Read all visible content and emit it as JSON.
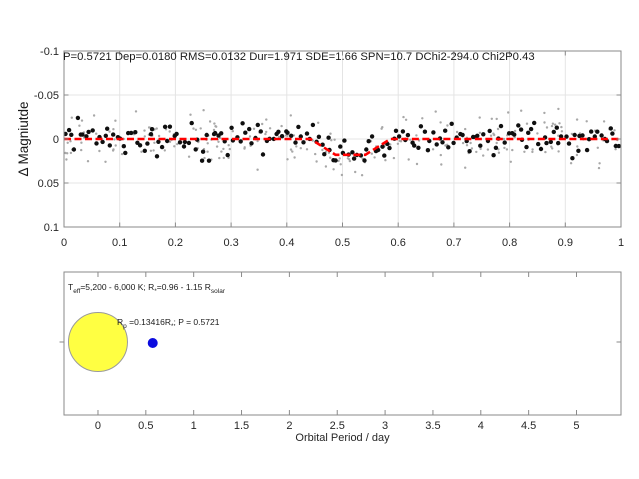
{
  "figure": {
    "background": "#ffffff"
  },
  "palette": {
    "box": "#8a8a8a",
    "grid": "#e4e4e4",
    "tick_label": "#262626",
    "title_text": "#1a1a1a",
    "model_line": "#ff0000",
    "binned_point": "#0f0f0f",
    "raw_point": "#a8a8a8",
    "star_fill": "#ffff42",
    "star_edge": "#9a9a9a",
    "planet_fill": "#0b0bdf"
  },
  "chart_data": [
    {
      "type": "scatter",
      "title": "P=0.5721 Dep=0.0180 RMS=0.0132 Dur=1.971 SDE=1.66 SPN=10.7 DChi2-294.0 Chi2P0.43",
      "ylabel": "Δ Magniutde",
      "xlim": [
        0,
        1
      ],
      "ylim": [
        -0.1,
        0.1
      ],
      "y_direction": "reversed",
      "grid": true,
      "xticks": {
        "values": [
          0,
          0.1,
          0.2,
          0.3,
          0.4,
          0.5,
          0.6,
          0.7,
          0.8,
          0.9,
          1
        ],
        "labels": [
          "0",
          "0.1",
          "0.2",
          "0.3",
          "0.4",
          "0.5",
          "0.6",
          "0.7",
          "0.8",
          "0.9",
          "1"
        ]
      },
      "yticks": {
        "values": [
          -0.1,
          -0.05,
          0,
          0.05,
          0.1
        ],
        "labels": [
          "-0.1",
          "-0.05",
          "0",
          "0.05",
          "0.1"
        ]
      },
      "model_line": {
        "style": "dashed",
        "points": [
          [
            0,
            0
          ],
          [
            0.4425,
            0
          ],
          [
            0.4875,
            0.018
          ],
          [
            0.541,
            0.018
          ],
          [
            0.586,
            0
          ],
          [
            1,
            0
          ]
        ]
      },
      "scatter": {
        "seed": 7,
        "series": [
          {
            "name": "raw-points",
            "n": 260,
            "rms": 0.0135,
            "radius": 1.2
          },
          {
            "name": "binned-points",
            "n": 185,
            "rms": 0.0095,
            "radius": 2.2
          }
        ]
      },
      "stats": {
        "P": 0.5721,
        "Dep": 0.018,
        "RMS": 0.0132,
        "Dur": 1.971,
        "SDE": 1.66,
        "SPN": 10.7,
        "DChi2": 294.0,
        "Chi2P": 0.43
      }
    },
    {
      "type": "diagram",
      "xlabel": "Orbital Period / day",
      "xlim": [
        -0.355,
        5.465
      ],
      "xticks": {
        "values": [
          0,
          0.5,
          1,
          1.5,
          2,
          2.5,
          3,
          3.5,
          4,
          4.5,
          5
        ],
        "labels": [
          "0",
          "0.5",
          "1",
          "1.5",
          "2",
          "2.5",
          "3",
          "3.5",
          "4",
          "4.5",
          "5"
        ]
      },
      "star": {
        "x_day": 0,
        "radius_px": 29.5,
        "label_parts": [
          {
            "t": "T"
          },
          {
            "t": "eff",
            "sub": true
          },
          {
            "t": "=5,200 - 6,000 K;  R"
          },
          {
            "t": "*",
            "sub": true
          },
          {
            "t": "=0.96 - 1.15 R"
          },
          {
            "t": "solar",
            "sub": true
          }
        ]
      },
      "planet": {
        "x_day": 0.5721,
        "radius_px": 5,
        "label_parts": [
          {
            "t": "R"
          },
          {
            "t": "p",
            "sub": true
          },
          {
            "t": " =0.13416R"
          },
          {
            "t": "*",
            "sub": true
          },
          {
            "t": ";  P = 0.5721"
          }
        ]
      }
    }
  ]
}
